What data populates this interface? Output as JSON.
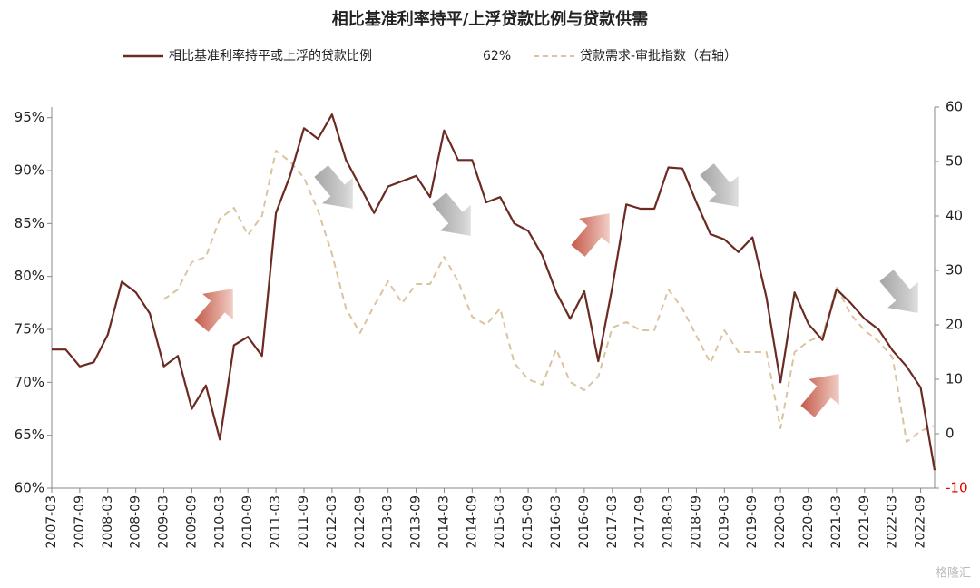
{
  "chart_data": {
    "type": "line",
    "title": "相比基准利率持平/上浮贷款比例与贷款供需",
    "categories": [
      "2007-03",
      null,
      "2007-09",
      null,
      "2008-03",
      null,
      "2008-09",
      null,
      "2009-03",
      null,
      "2009-09",
      null,
      "2010-03",
      null,
      "2010-09",
      null,
      "2011-03",
      null,
      "2011-09",
      null,
      "2012-03",
      null,
      "2012-09",
      null,
      "2013-03",
      null,
      "2013-09",
      null,
      "2014-03",
      null,
      "2014-09",
      null,
      "2015-03",
      null,
      "2015-09",
      null,
      "2016-03",
      null,
      "2016-09",
      null,
      "2017-03",
      null,
      "2017-09",
      null,
      "2018-03",
      null,
      "2018-09",
      null,
      "2019-03",
      null,
      "2019-09",
      null,
      "2020-03",
      null,
      "2020-09",
      null,
      "2021-03",
      null,
      "2021-09",
      null,
      "2022-03",
      null,
      "2022-09",
      null
    ],
    "series": [
      {
        "name": "相比基准利率持平或上浮的贷款比例",
        "color": "#6b2a22",
        "dash": false,
        "values": [
          73.1,
          73.1,
          71.5,
          71.9,
          74.5,
          79.5,
          78.5,
          76.5,
          71.5,
          72.5,
          67.5,
          69.7,
          64.6,
          73.5,
          74.3,
          72.5,
          86,
          89.5,
          94,
          93,
          95.3,
          91,
          88.5,
          86,
          88.5,
          89,
          89.5,
          87.5,
          93.8,
          91,
          91,
          87,
          87.5,
          85,
          84.3,
          82,
          78.5,
          76,
          78.6,
          72,
          79,
          86.8,
          86.4,
          86.4,
          90.3,
          90.2,
          87,
          84,
          83.5,
          82.3,
          83.7,
          78,
          70,
          78.5,
          75.5,
          74,
          78.8,
          77.5,
          76,
          75,
          73,
          71.5,
          69.5,
          61.7
        ]
      },
      {
        "name": "贷款需求-审批指数（右轴）",
        "color": "#dcc3a0",
        "dash": true,
        "axis": "y2",
        "values": [
          null,
          null,
          null,
          null,
          null,
          null,
          null,
          null,
          24.7,
          26.5,
          31.5,
          32.5,
          39.5,
          41.5,
          36.5,
          40,
          52,
          50,
          47,
          41,
          33,
          23,
          18.5,
          23.5,
          28,
          24,
          27.5,
          27.5,
          32.5,
          28,
          21.5,
          20,
          23,
          13,
          10,
          9,
          15.5,
          9.5,
          8,
          10.5,
          19.5,
          20.5,
          19,
          19,
          26.5,
          23,
          18,
          13,
          19,
          15,
          15,
          15,
          1,
          15,
          17,
          18,
          27,
          22,
          19,
          17,
          14,
          -1.5,
          0.5,
          1.5
        ]
      }
    ],
    "annotations": [
      {
        "text": "62%"
      }
    ],
    "ylim": [
      60,
      96
    ],
    "yticks": [
      {
        "value": 60,
        "label": "60%"
      },
      {
        "value": 65,
        "label": "65%"
      },
      {
        "value": 70,
        "label": "70%"
      },
      {
        "value": 75,
        "label": "75%"
      },
      {
        "value": 80,
        "label": "80%"
      },
      {
        "value": 85,
        "label": "85%"
      },
      {
        "value": 90,
        "label": "90%"
      },
      {
        "value": 95,
        "label": "95%"
      }
    ],
    "y2lim": [
      -10,
      60
    ],
    "y2ticks": [
      -10,
      0,
      10,
      20,
      30,
      40,
      50,
      60
    ],
    "y2tick_negative_color": "#e00000",
    "grid": false,
    "watermark": "格隆汇"
  }
}
